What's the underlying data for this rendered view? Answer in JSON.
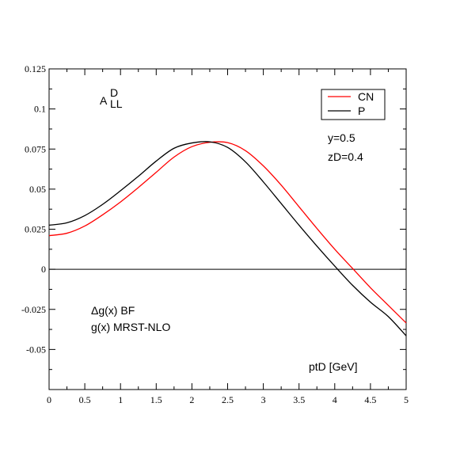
{
  "chart_data": {
    "type": "line",
    "title": "",
    "xlabel": "ptD [GeV]",
    "ylabel": "",
    "xlim": [
      0,
      5
    ],
    "ylim": [
      -0.075,
      0.125
    ],
    "grid": false,
    "legend_position": "top-right",
    "x_ticks": [
      "0",
      "0.5",
      "1",
      "1.5",
      "2",
      "2.5",
      "3",
      "3.5",
      "4",
      "4.5",
      "5"
    ],
    "y_ticks": [
      "0.125",
      "0.1",
      "0.075",
      "0.05",
      "0.025",
      "0",
      "-0.025",
      "-0.05"
    ],
    "quantity_label": {
      "base": "A",
      "sup": "D",
      "sub": "LL"
    },
    "annotations": [
      "y=0.5",
      "zD=0.4",
      "Δg(x)  BF",
      "g(x)  MRST-NLO",
      "ptD [GeV]"
    ],
    "x": [
      0,
      0.25,
      0.5,
      0.75,
      1,
      1.25,
      1.5,
      1.75,
      2,
      2.25,
      2.5,
      2.75,
      3,
      3.25,
      3.5,
      3.75,
      4,
      4.25,
      4.5,
      4.75,
      5
    ],
    "series": [
      {
        "name": "CN",
        "color": "#ff0000",
        "values": [
          0.021,
          0.0225,
          0.027,
          0.034,
          0.042,
          0.051,
          0.0605,
          0.07,
          0.0765,
          0.0792,
          0.079,
          0.074,
          0.0645,
          0.0525,
          0.039,
          0.0255,
          0.0125,
          0.0005,
          -0.0115,
          -0.0225,
          -0.0335
        ]
      },
      {
        "name": "P",
        "color": "#000000",
        "values": [
          0.0275,
          0.029,
          0.0335,
          0.0405,
          0.049,
          0.058,
          0.0675,
          0.0755,
          0.0788,
          0.0795,
          0.076,
          0.067,
          0.0545,
          0.041,
          0.0275,
          0.0145,
          0.002,
          -0.01,
          -0.0205,
          -0.0295,
          -0.0415
        ]
      }
    ],
    "zero_line": 0
  }
}
